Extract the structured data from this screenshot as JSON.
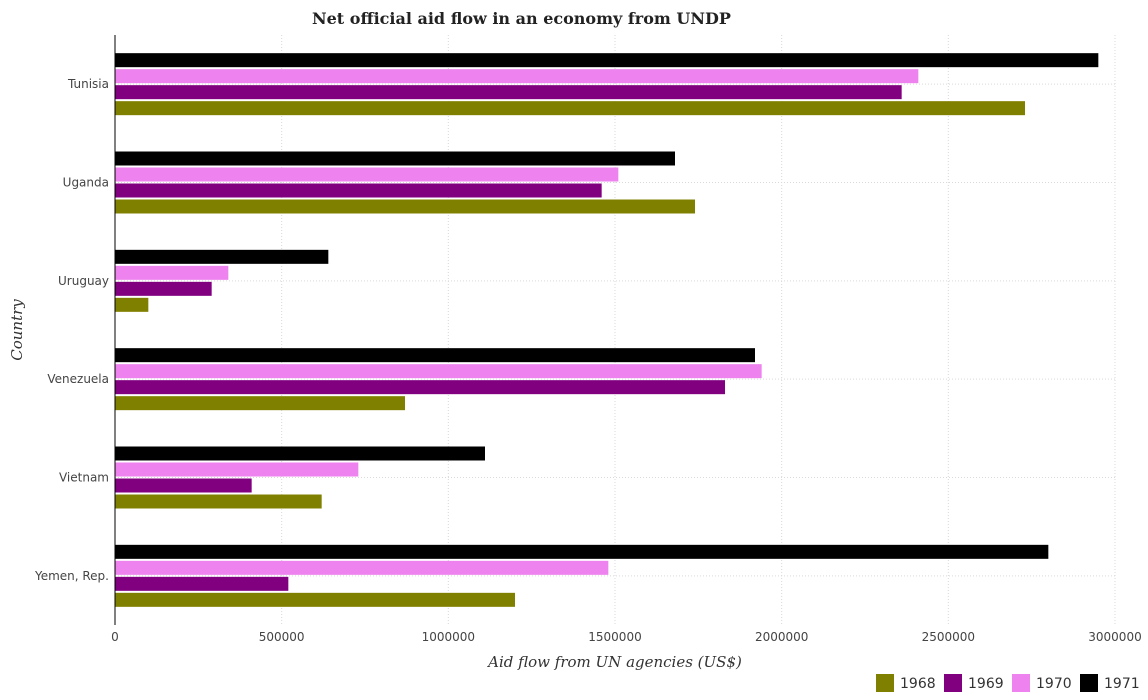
{
  "chart_data": {
    "type": "bar",
    "orientation": "horizontal",
    "title": "Net official aid flow in an economy from UNDP",
    "xlabel": "Aid flow from UN agencies (US$)",
    "ylabel": "Country",
    "xlim": [
      0,
      3000000
    ],
    "xticks": [
      0,
      500000,
      1000000,
      1500000,
      2000000,
      2500000,
      3000000
    ],
    "xtick_labels": [
      "0",
      "500000",
      "1000000",
      "1500000",
      "2000000",
      "2500000",
      "3000000"
    ],
    "categories": [
      "Tunisia",
      "Uganda",
      "Uruguay",
      "Venezuela",
      "Vietnam",
      "Yemen, Rep."
    ],
    "series": [
      {
        "name": "1968",
        "color": "#808000",
        "values": [
          2730000,
          1740000,
          100000,
          870000,
          620000,
          1200000
        ]
      },
      {
        "name": "1969",
        "color": "#800080",
        "values": [
          2360000,
          1460000,
          290000,
          1830000,
          410000,
          520000
        ]
      },
      {
        "name": "1970",
        "color": "#ee82ee",
        "values": [
          2410000,
          1510000,
          340000,
          1940000,
          730000,
          1480000
        ]
      },
      {
        "name": "1971",
        "color": "#000000",
        "values": [
          2950000,
          1680000,
          640000,
          1920000,
          1110000,
          2800000
        ]
      }
    ],
    "grid": true,
    "legend_position": "bottom-right"
  }
}
